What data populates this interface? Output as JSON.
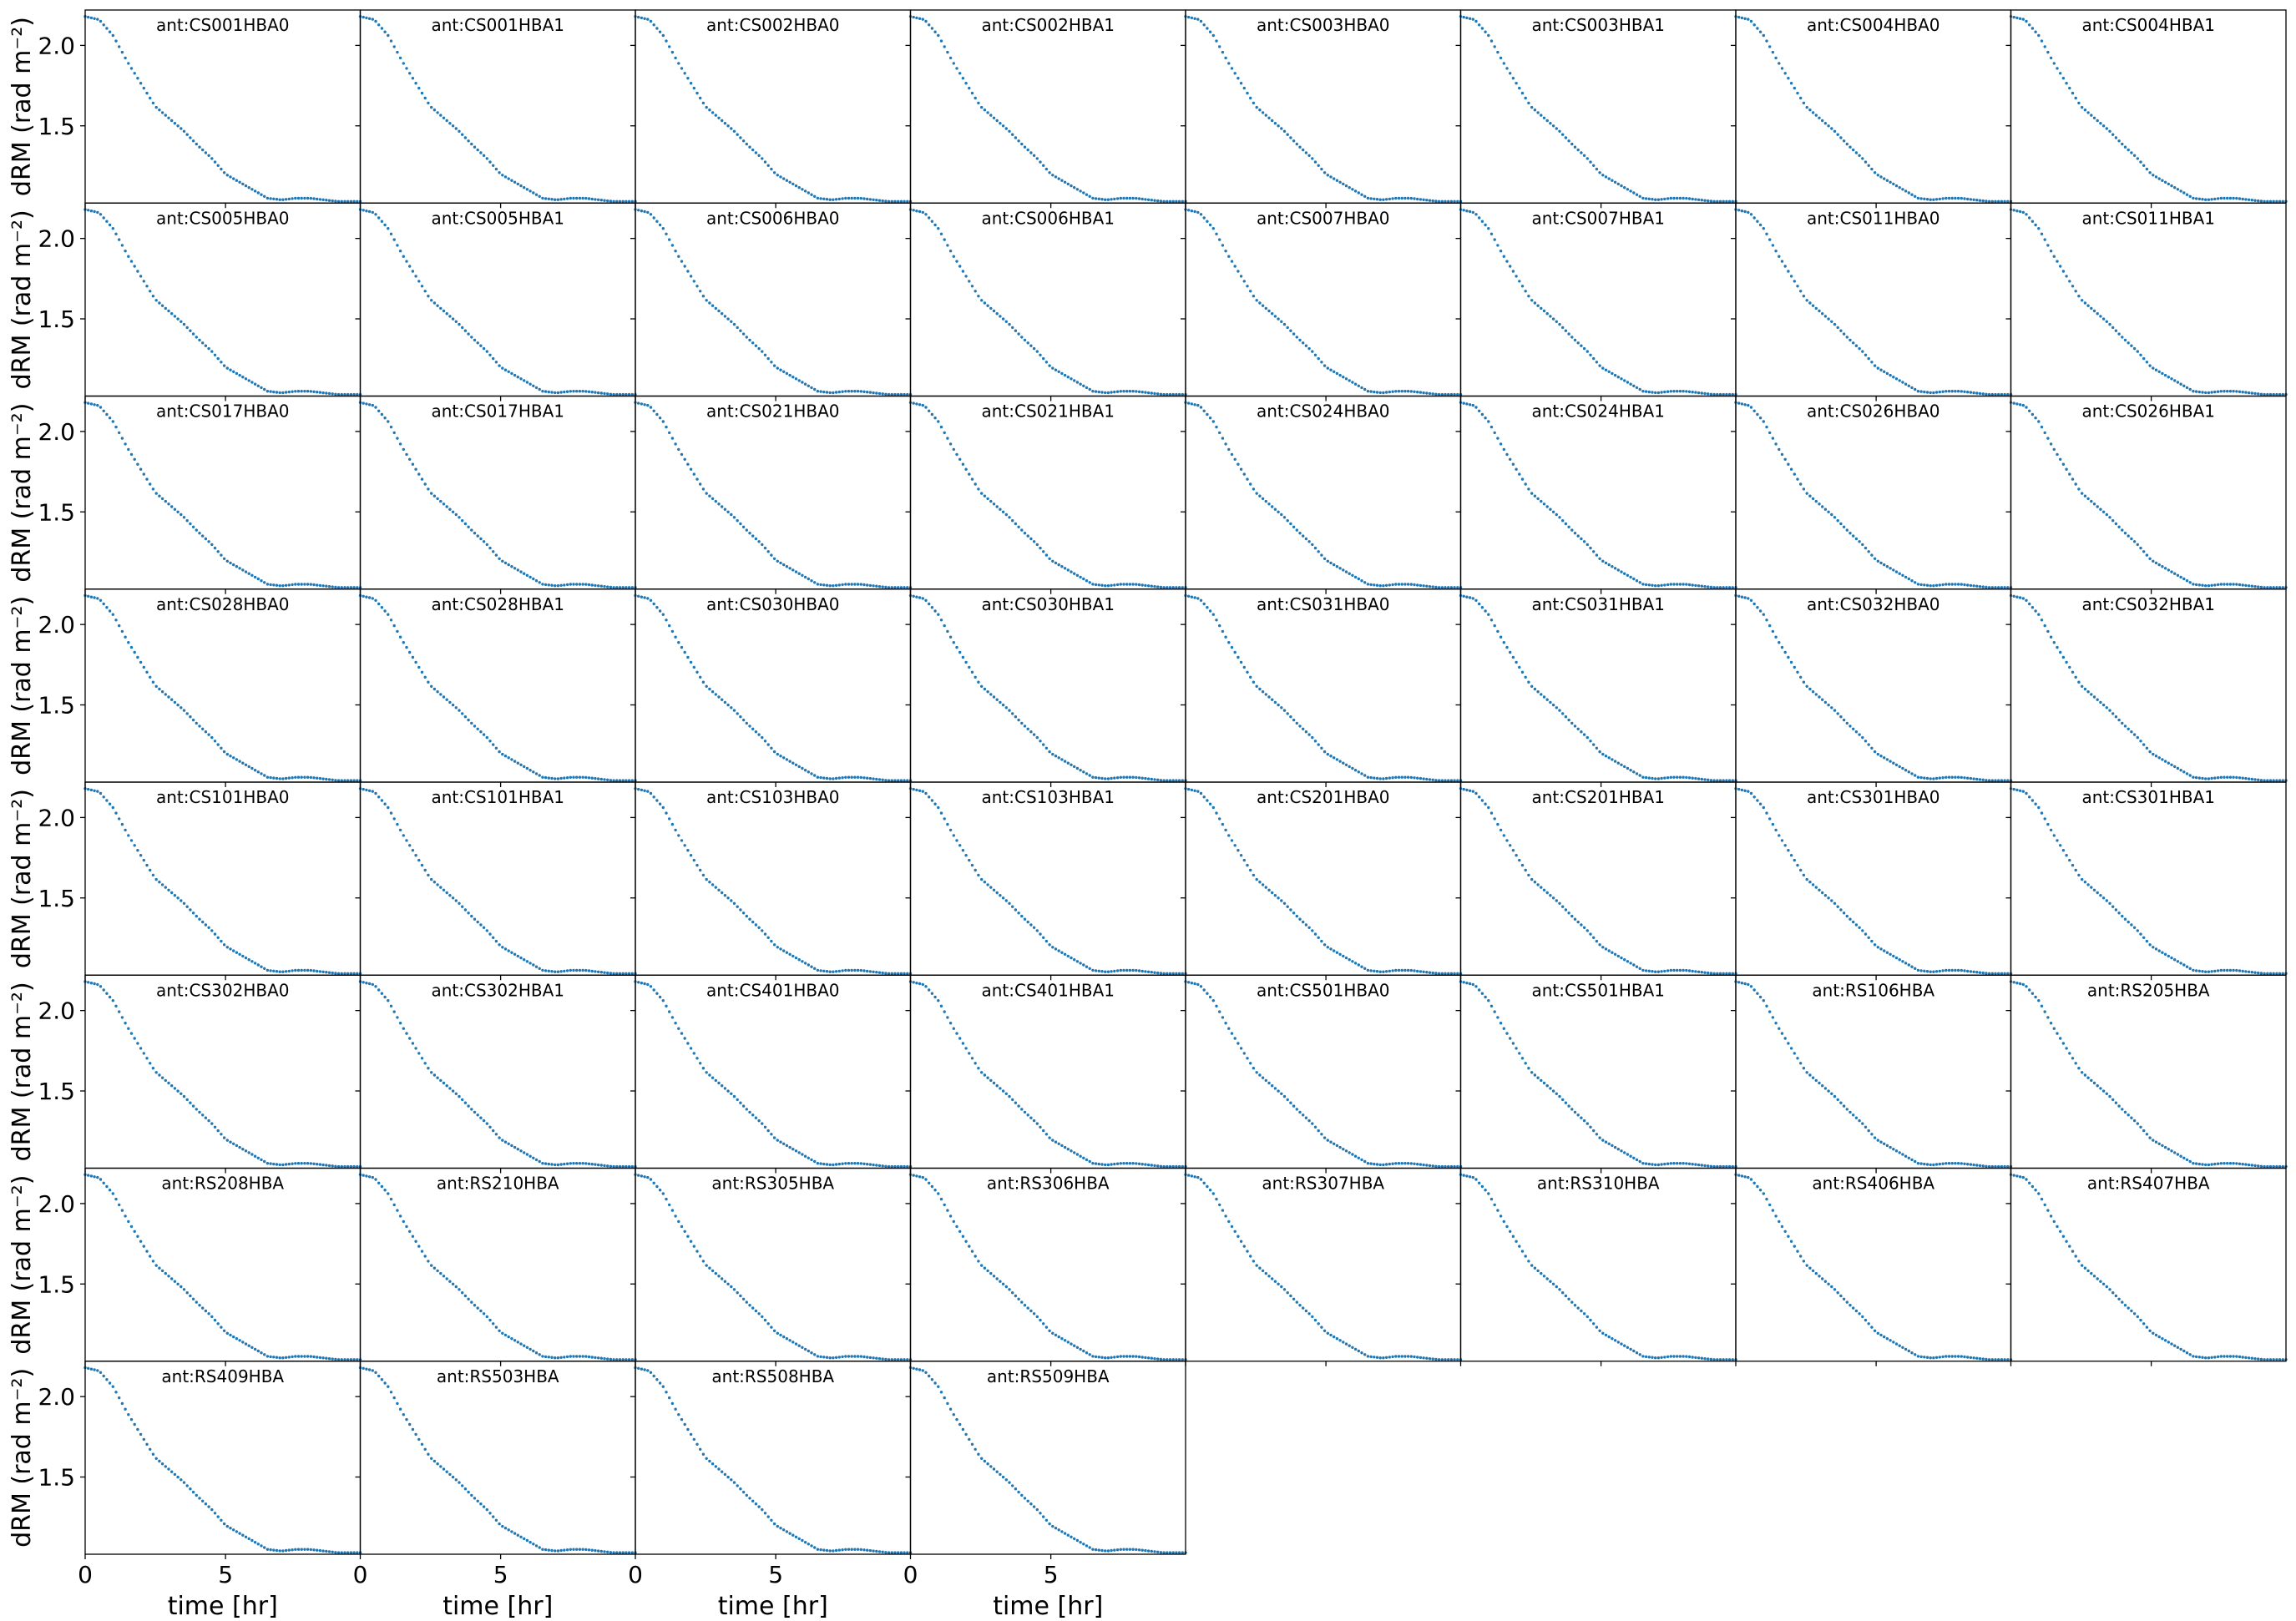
{
  "chart_data": {
    "type": "scatter",
    "layout": {
      "rows": 8,
      "cols": 8
    },
    "panel_titles": [
      "ant:CS001HBA0",
      "ant:CS001HBA1",
      "ant:CS002HBA0",
      "ant:CS002HBA1",
      "ant:CS003HBA0",
      "ant:CS003HBA1",
      "ant:CS004HBA0",
      "ant:CS004HBA1",
      "ant:CS005HBA0",
      "ant:CS005HBA1",
      "ant:CS006HBA0",
      "ant:CS006HBA1",
      "ant:CS007HBA0",
      "ant:CS007HBA1",
      "ant:CS011HBA0",
      "ant:CS011HBA1",
      "ant:CS017HBA0",
      "ant:CS017HBA1",
      "ant:CS021HBA0",
      "ant:CS021HBA1",
      "ant:CS024HBA0",
      "ant:CS024HBA1",
      "ant:CS026HBA0",
      "ant:CS026HBA1",
      "ant:CS028HBA0",
      "ant:CS028HBA1",
      "ant:CS030HBA0",
      "ant:CS030HBA1",
      "ant:CS031HBA0",
      "ant:CS031HBA1",
      "ant:CS032HBA0",
      "ant:CS032HBA1",
      "ant:CS101HBA0",
      "ant:CS101HBA1",
      "ant:CS103HBA0",
      "ant:CS103HBA1",
      "ant:CS201HBA0",
      "ant:CS201HBA1",
      "ant:CS301HBA0",
      "ant:CS301HBA1",
      "ant:CS302HBA0",
      "ant:CS302HBA1",
      "ant:CS401HBA0",
      "ant:CS401HBA1",
      "ant:CS501HBA0",
      "ant:CS501HBA1",
      "ant:RS106HBA",
      "ant:RS205HBA",
      "ant:RS208HBA",
      "ant:RS210HBA",
      "ant:RS305HBA",
      "ant:RS306HBA",
      "ant:RS307HBA",
      "ant:RS310HBA",
      "ant:RS406HBA",
      "ant:RS407HBA",
      "ant:RS409HBA",
      "ant:RS503HBA",
      "ant:RS508HBA",
      "ant:RS509HBA"
    ],
    "xlabel": "time [hr]",
    "ylabel": "dRM (rad m⁻²)",
    "xlim": [
      0,
      9.8
    ],
    "ylim": [
      1.02,
      2.22
    ],
    "xticks": [
      0,
      5
    ],
    "yticks": [
      1.5,
      2.0
    ],
    "xtick_labels": [
      "0",
      "5"
    ],
    "ytick_labels": [
      "1.5",
      "2.0"
    ],
    "grid": false,
    "series": [
      {
        "x": [
          0,
          0.5,
          1.0,
          1.5,
          2.0,
          2.5,
          2.9,
          3.5,
          4.0,
          4.5,
          5.0,
          5.5,
          6.0,
          6.5,
          7.0,
          7.5,
          8.0,
          8.5,
          9.0,
          9.5,
          9.8
        ],
        "y": [
          2.18,
          2.16,
          2.06,
          1.9,
          1.76,
          1.62,
          1.56,
          1.47,
          1.38,
          1.3,
          1.2,
          1.15,
          1.1,
          1.05,
          1.04,
          1.05,
          1.05,
          1.04,
          1.03,
          1.03,
          1.03
        ]
      }
    ]
  }
}
